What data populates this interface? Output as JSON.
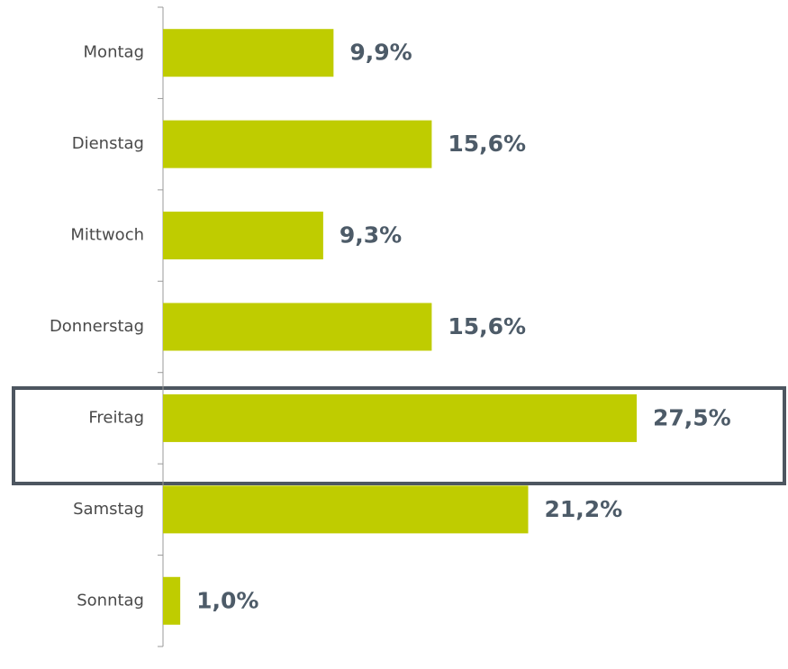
{
  "chart_data": {
    "type": "barh",
    "categories": [
      "Montag",
      "Dienstag",
      "Mittwoch",
      "Donnerstag",
      "Freitag",
      "Samstag",
      "Sonntag"
    ],
    "values": [
      9.9,
      15.6,
      9.3,
      15.6,
      27.5,
      21.2,
      1.0
    ],
    "value_labels": [
      "9,9%",
      "15,6%",
      "9,3%",
      "15,6%",
      "27,5%",
      "21,2%",
      "1,0%"
    ],
    "color": "#bfcc00"
  }
}
